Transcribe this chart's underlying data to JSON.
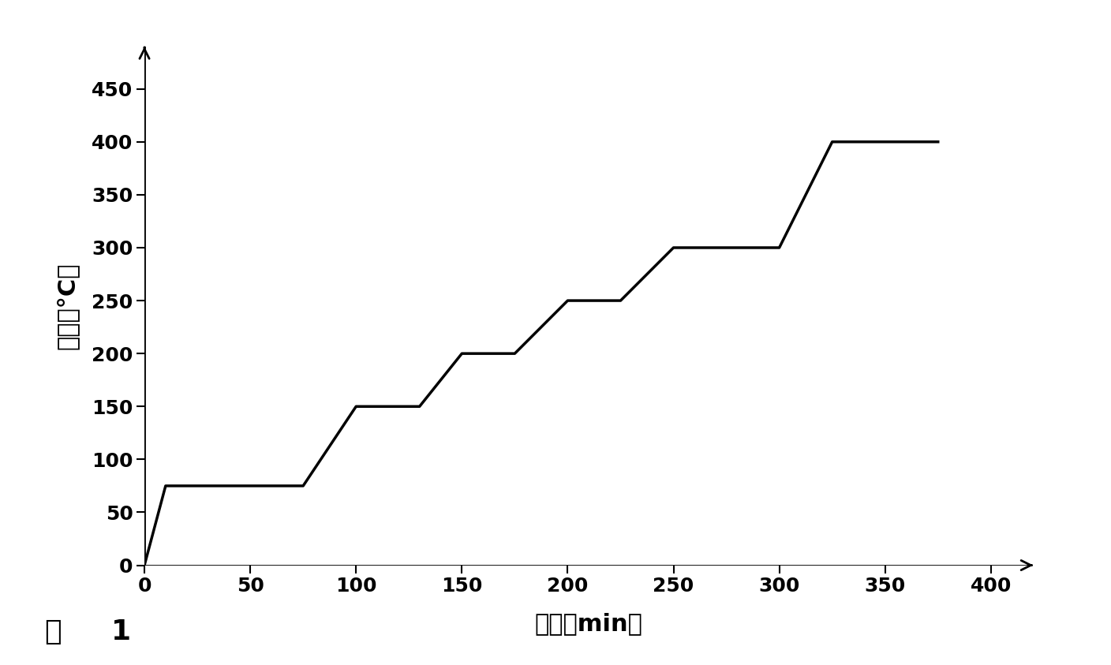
{
  "x": [
    0,
    10,
    10,
    75,
    75,
    100,
    100,
    130,
    130,
    150,
    150,
    175,
    175,
    200,
    200,
    225,
    225,
    250,
    250,
    300,
    300,
    325,
    325,
    375
  ],
  "y": [
    0,
    75,
    75,
    75,
    75,
    150,
    150,
    150,
    150,
    200,
    200,
    200,
    200,
    250,
    250,
    250,
    250,
    300,
    300,
    300,
    300,
    400,
    400,
    400
  ],
  "xlabel": "时间（min）",
  "ylabel": "温度（°C）",
  "caption_fig": "图",
  "caption_num": "1",
  "xlim": [
    0,
    420
  ],
  "ylim": [
    0,
    490
  ],
  "xticks": [
    0,
    50,
    100,
    150,
    200,
    250,
    300,
    350,
    400
  ],
  "yticks": [
    0,
    50,
    100,
    150,
    200,
    250,
    300,
    350,
    400,
    450
  ],
  "line_color": "#000000",
  "line_width": 2.5,
  "bg_color": "#ffffff",
  "xlabel_fontsize": 22,
  "ylabel_fontsize": 22,
  "tick_fontsize": 18,
  "caption_fontsize": 26
}
